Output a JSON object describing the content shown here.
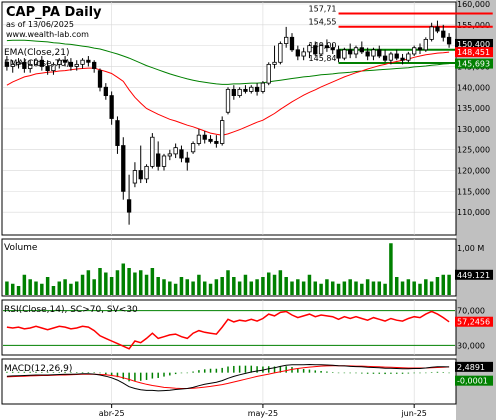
{
  "header": {
    "title": "CAP_PA Daily",
    "subtitle": "as of 13/06/2025",
    "source": "www.wealth-lab.com"
  },
  "colors": {
    "background": "#ffffff",
    "axis_panel": "#c0c0c0",
    "grid": "#d8d8d8",
    "candle": "#000000",
    "ema21": "#ff0000",
    "ema70": "#008000",
    "resistance": "#ff0000",
    "support": "#008000",
    "volume": "#008000",
    "rsi_line": "#ff0000",
    "rsi_zone": "#008000",
    "macd_line": "#000000",
    "macd_signal": "#ff0000",
    "macd_hist": "#008000",
    "last_price_box": "#000000"
  },
  "chart_data": [
    {
      "type": "candlestick",
      "legend": [
        "EMA(Close,21)",
        "EMA(Close,70)"
      ],
      "ylim": [
        105,
        160
      ],
      "yticks": [
        "110,000",
        "115,000",
        "120,000",
        "125,000",
        "130,000",
        "135,000",
        "140,000",
        "145,000",
        "150,000",
        "155,000",
        "160,000"
      ],
      "x_labels": [
        {
          "i": 18,
          "label": "abr-25"
        },
        {
          "i": 44,
          "label": "may-25"
        },
        {
          "i": 70,
          "label": "jun-25"
        }
      ],
      "axis_markers": [
        {
          "value": 150.4,
          "label": "150,400",
          "color": "#000000"
        },
        {
          "value": 148.45,
          "label": "148,451",
          "color": "#ff0000"
        },
        {
          "value": 145.69,
          "label": "145,693",
          "color": "#008000"
        }
      ],
      "levels": [
        {
          "value": 157.71,
          "label": "157,71",
          "color": "#ff0000",
          "from": 57,
          "to": 83
        },
        {
          "value": 154.55,
          "label": "154,55",
          "color": "#ff0000",
          "from": 57,
          "to": 83
        },
        {
          "value": 149.0,
          "label": "149,00",
          "color": "#008000",
          "from": 57,
          "to": 83
        },
        {
          "value": 145.84,
          "label": "145,84",
          "color": "#008000",
          "from": 57,
          "to": 83
        }
      ],
      "candles": [
        {
          "o": 146.0,
          "h": 147.5,
          "l": 144.0,
          "c": 145.0
        },
        {
          "o": 145.0,
          "h": 146.5,
          "l": 143.5,
          "c": 145.5
        },
        {
          "o": 145.5,
          "h": 147.0,
          "l": 144.5,
          "c": 146.0
        },
        {
          "o": 146.0,
          "h": 147.0,
          "l": 143.5,
          "c": 144.5
        },
        {
          "o": 144.5,
          "h": 146.5,
          "l": 143.5,
          "c": 145.5
        },
        {
          "o": 145.5,
          "h": 147.0,
          "l": 145.0,
          "c": 146.5
        },
        {
          "o": 146.5,
          "h": 147.5,
          "l": 144.0,
          "c": 145.0
        },
        {
          "o": 145.0,
          "h": 146.5,
          "l": 143.0,
          "c": 144.0
        },
        {
          "o": 144.0,
          "h": 146.0,
          "l": 143.0,
          "c": 145.5
        },
        {
          "o": 145.5,
          "h": 147.0,
          "l": 144.5,
          "c": 146.5
        },
        {
          "o": 146.5,
          "h": 147.5,
          "l": 145.0,
          "c": 146.0
        },
        {
          "o": 146.0,
          "h": 147.0,
          "l": 144.0,
          "c": 145.0
        },
        {
          "o": 145.0,
          "h": 146.5,
          "l": 144.0,
          "c": 145.5
        },
        {
          "o": 145.5,
          "h": 147.0,
          "l": 144.5,
          "c": 146.5
        },
        {
          "o": 146.5,
          "h": 147.5,
          "l": 145.0,
          "c": 146.0
        },
        {
          "o": 146.0,
          "h": 146.5,
          "l": 143.5,
          "c": 144.5
        },
        {
          "o": 144.0,
          "h": 144.5,
          "l": 139.0,
          "c": 140.0
        },
        {
          "o": 140.0,
          "h": 141.0,
          "l": 137.0,
          "c": 138.0
        },
        {
          "o": 138.0,
          "h": 139.0,
          "l": 131.0,
          "c": 132.5
        },
        {
          "o": 132.0,
          "h": 133.0,
          "l": 124.0,
          "c": 126.0
        },
        {
          "o": 126.0,
          "h": 128.0,
          "l": 113.0,
          "c": 115.0
        },
        {
          "o": 113.0,
          "h": 119.0,
          "l": 107.0,
          "c": 110.0
        },
        {
          "o": 117.0,
          "h": 122.0,
          "l": 116.0,
          "c": 120.0
        },
        {
          "o": 120.0,
          "h": 126.0,
          "l": 117.0,
          "c": 118.0
        },
        {
          "o": 118.0,
          "h": 121.5,
          "l": 117.0,
          "c": 121.0
        },
        {
          "o": 121.0,
          "h": 129.0,
          "l": 120.5,
          "c": 128.0
        },
        {
          "o": 124.0,
          "h": 127.0,
          "l": 120.0,
          "c": 121.0
        },
        {
          "o": 121.0,
          "h": 124.0,
          "l": 120.0,
          "c": 123.5
        },
        {
          "o": 123.5,
          "h": 125.0,
          "l": 122.5,
          "c": 124.0
        },
        {
          "o": 124.0,
          "h": 126.5,
          "l": 123.0,
          "c": 125.5
        },
        {
          "o": 125.0,
          "h": 126.0,
          "l": 122.0,
          "c": 123.0
        },
        {
          "o": 123.0,
          "h": 124.5,
          "l": 120.0,
          "c": 122.0
        },
        {
          "o": 124.5,
          "h": 127.0,
          "l": 124.0,
          "c": 126.5
        },
        {
          "o": 126.5,
          "h": 130.0,
          "l": 126.0,
          "c": 128.5
        },
        {
          "o": 128.5,
          "h": 129.5,
          "l": 126.5,
          "c": 127.5
        },
        {
          "o": 127.5,
          "h": 128.5,
          "l": 126.5,
          "c": 127.0
        },
        {
          "o": 127.0,
          "h": 128.5,
          "l": 125.5,
          "c": 126.5
        },
        {
          "o": 126.5,
          "h": 133.0,
          "l": 126.0,
          "c": 132.0
        },
        {
          "o": 134.0,
          "h": 140.0,
          "l": 133.5,
          "c": 139.5
        },
        {
          "o": 139.5,
          "h": 140.5,
          "l": 137.0,
          "c": 138.0
        },
        {
          "o": 138.0,
          "h": 140.0,
          "l": 137.5,
          "c": 139.5
        },
        {
          "o": 139.5,
          "h": 140.5,
          "l": 138.5,
          "c": 139.0
        },
        {
          "o": 139.0,
          "h": 140.5,
          "l": 138.5,
          "c": 140.0
        },
        {
          "o": 140.0,
          "h": 141.0,
          "l": 138.0,
          "c": 139.0
        },
        {
          "o": 139.0,
          "h": 141.5,
          "l": 138.5,
          "c": 141.0
        },
        {
          "o": 141.0,
          "h": 146.0,
          "l": 140.5,
          "c": 145.5
        },
        {
          "o": 145.5,
          "h": 150.0,
          "l": 144.5,
          "c": 146.0
        },
        {
          "o": 146.0,
          "h": 151.0,
          "l": 145.5,
          "c": 150.5
        },
        {
          "o": 150.5,
          "h": 154.5,
          "l": 149.5,
          "c": 152.0
        },
        {
          "o": 152.0,
          "h": 153.0,
          "l": 148.5,
          "c": 149.0
        },
        {
          "o": 149.0,
          "h": 150.0,
          "l": 146.5,
          "c": 147.5
        },
        {
          "o": 147.5,
          "h": 149.5,
          "l": 146.5,
          "c": 148.5
        },
        {
          "o": 148.5,
          "h": 150.5,
          "l": 147.0,
          "c": 150.0
        },
        {
          "o": 150.0,
          "h": 151.0,
          "l": 147.5,
          "c": 148.0
        },
        {
          "o": 148.0,
          "h": 150.5,
          "l": 147.5,
          "c": 150.0
        },
        {
          "o": 150.0,
          "h": 151.5,
          "l": 148.5,
          "c": 149.5
        },
        {
          "o": 149.5,
          "h": 150.5,
          "l": 148.0,
          "c": 149.0
        },
        {
          "o": 149.0,
          "h": 150.0,
          "l": 146.0,
          "c": 147.0
        },
        {
          "o": 147.0,
          "h": 149.5,
          "l": 146.5,
          "c": 149.0
        },
        {
          "o": 149.0,
          "h": 150.5,
          "l": 147.0,
          "c": 148.0
        },
        {
          "o": 148.0,
          "h": 150.0,
          "l": 147.0,
          "c": 149.5
        },
        {
          "o": 149.5,
          "h": 151.0,
          "l": 148.0,
          "c": 148.5
        },
        {
          "o": 148.5,
          "h": 149.5,
          "l": 146.5,
          "c": 147.5
        },
        {
          "o": 147.5,
          "h": 149.5,
          "l": 146.5,
          "c": 149.0
        },
        {
          "o": 149.0,
          "h": 150.0,
          "l": 147.0,
          "c": 147.5
        },
        {
          "o": 147.5,
          "h": 149.0,
          "l": 146.0,
          "c": 146.5
        },
        {
          "o": 146.5,
          "h": 148.5,
          "l": 145.5,
          "c": 148.0
        },
        {
          "o": 148.0,
          "h": 149.0,
          "l": 146.5,
          "c": 147.0
        },
        {
          "o": 147.0,
          "h": 148.0,
          "l": 145.5,
          "c": 146.5
        },
        {
          "o": 146.5,
          "h": 148.5,
          "l": 146.0,
          "c": 148.0
        },
        {
          "o": 148.0,
          "h": 150.0,
          "l": 147.5,
          "c": 149.5
        },
        {
          "o": 149.5,
          "h": 150.5,
          "l": 148.0,
          "c": 149.0
        },
        {
          "o": 149.0,
          "h": 152.0,
          "l": 148.5,
          "c": 151.5
        },
        {
          "o": 151.5,
          "h": 155.5,
          "l": 151.0,
          "c": 154.5
        },
        {
          "o": 154.5,
          "h": 156.0,
          "l": 153.0,
          "c": 153.5
        },
        {
          "o": 153.5,
          "h": 155.0,
          "l": 151.0,
          "c": 152.0
        },
        {
          "o": 152.0,
          "h": 153.0,
          "l": 149.5,
          "c": 150.4
        }
      ],
      "ema21": [
        140.5,
        141.3,
        141.9,
        142.5,
        142.8,
        143.2,
        143.4,
        143.6,
        143.7,
        143.9,
        144.0,
        144.2,
        144.4,
        144.5,
        144.6,
        144.6,
        144.2,
        143.8,
        143.3,
        142.4,
        141.4,
        139.4,
        137.6,
        136.2,
        134.9,
        134.2,
        133.5,
        132.9,
        132.3,
        131.9,
        131.4,
        130.9,
        130.5,
        130.0,
        129.5,
        129.0,
        128.7,
        128.5,
        128.8,
        129.3,
        129.8,
        130.4,
        131.0,
        131.6,
        132.1,
        132.9,
        133.7,
        134.7,
        135.6,
        136.5,
        137.3,
        138.1,
        138.8,
        139.4,
        140.1,
        140.7,
        141.3,
        141.9,
        142.5,
        143.0,
        143.5,
        143.9,
        144.4,
        144.8,
        145.2,
        145.5,
        145.9,
        146.2,
        146.5,
        146.8,
        147.2,
        147.5,
        147.8,
        148.0,
        148.2,
        148.3,
        148.45
      ],
      "ema70": [
        151.2,
        151.3,
        151.3,
        151.3,
        151.2,
        151.1,
        151.0,
        150.9,
        150.7,
        150.6,
        150.4,
        150.3,
        150.1,
        149.9,
        149.7,
        149.4,
        149.2,
        148.8,
        148.4,
        148.0,
        147.5,
        147.0,
        146.4,
        145.8,
        145.2,
        144.7,
        144.2,
        143.7,
        143.2,
        142.8,
        142.4,
        142.0,
        141.7,
        141.4,
        141.2,
        141.0,
        140.8,
        140.7,
        140.7,
        140.8,
        140.8,
        140.9,
        141.0,
        141.0,
        141.1,
        141.3,
        141.5,
        141.7,
        141.9,
        142.1,
        142.3,
        142.5,
        142.6,
        142.8,
        143.0,
        143.1,
        143.2,
        143.4,
        143.5,
        143.6,
        143.8,
        143.9,
        144.0,
        144.1,
        144.2,
        144.3,
        144.4,
        144.5,
        144.6,
        144.7,
        144.9,
        145.0,
        145.1,
        145.3,
        145.4,
        145.6,
        145.69
      ]
    },
    {
      "type": "bar",
      "title": "Volume",
      "yticks": [
        "1,00 M"
      ],
      "ylim": [
        0,
        1.2
      ],
      "marker": {
        "value": 0.449121,
        "label": "449.121"
      },
      "values": [
        0.3,
        0.25,
        0.2,
        0.45,
        0.35,
        0.3,
        0.25,
        0.4,
        0.2,
        0.3,
        0.35,
        0.25,
        0.3,
        0.45,
        0.55,
        0.35,
        0.6,
        0.5,
        0.4,
        0.55,
        0.7,
        0.6,
        0.5,
        0.55,
        0.45,
        0.6,
        0.4,
        0.35,
        0.3,
        0.25,
        0.4,
        0.35,
        0.3,
        0.45,
        0.3,
        0.25,
        0.35,
        0.4,
        0.55,
        0.4,
        0.3,
        0.45,
        0.3,
        0.35,
        0.4,
        0.5,
        0.45,
        0.55,
        0.4,
        0.3,
        0.35,
        0.3,
        0.45,
        0.3,
        0.25,
        0.35,
        0.3,
        0.25,
        0.3,
        0.35,
        0.3,
        0.25,
        0.35,
        0.3,
        0.3,
        0.25,
        1.15,
        0.4,
        0.3,
        0.35,
        0.3,
        0.25,
        0.35,
        0.3,
        0.4,
        0.45,
        0.45
      ]
    },
    {
      "type": "line",
      "title": "RSI(Close,14), SC>70, SV<30",
      "ylim": [
        20,
        80
      ],
      "yticks": [
        "70,000",
        "30,000"
      ],
      "zones": [
        70,
        30
      ],
      "marker": {
        "value": 57.2456,
        "label": "57,2456"
      },
      "values": [
        51,
        50,
        51,
        49,
        50,
        52,
        50,
        48,
        50,
        52,
        51,
        49,
        50,
        52,
        51,
        47,
        41,
        38,
        35,
        32,
        29,
        26,
        35,
        33,
        38,
        44,
        38,
        40,
        42,
        43,
        40,
        38,
        44,
        47,
        45,
        44,
        43,
        51,
        60,
        57,
        59,
        58,
        60,
        58,
        61,
        66,
        64,
        68,
        69,
        65,
        62,
        64,
        66,
        63,
        65,
        64,
        63,
        60,
        63,
        61,
        63,
        61,
        59,
        62,
        60,
        58,
        61,
        59,
        58,
        61,
        63,
        62,
        66,
        69,
        66,
        62,
        57.2
      ]
    },
    {
      "type": "line",
      "title": "MACD(12,26,9)",
      "marker_top": {
        "value": 2.4891,
        "label": "2,4891"
      },
      "marker_bottom": {
        "value": -0.0001,
        "label": "-0,0001"
      },
      "ylim": [
        -13,
        5
      ],
      "macd": [
        -1.5,
        -1.4,
        -1.3,
        -1.2,
        -1.1,
        -1.0,
        -1.0,
        -1.0,
        -0.9,
        -0.8,
        -0.7,
        -0.7,
        -0.6,
        -0.5,
        -0.5,
        -0.6,
        -1.0,
        -1.5,
        -2.2,
        -3.2,
        -4.5,
        -6.0,
        -6.8,
        -7.3,
        -7.6,
        -7.6,
        -7.8,
        -7.7,
        -7.5,
        -7.2,
        -7.0,
        -6.8,
        -6.3,
        -5.6,
        -5.0,
        -4.5,
        -4.1,
        -3.4,
        -2.4,
        -1.6,
        -0.9,
        -0.3,
        0.3,
        0.7,
        1.1,
        1.7,
        2.1,
        2.7,
        3.2,
        3.4,
        3.4,
        3.4,
        3.5,
        3.4,
        3.4,
        3.3,
        3.2,
        3.0,
        2.9,
        2.7,
        2.6,
        2.5,
        2.3,
        2.2,
        2.1,
        1.9,
        1.9,
        1.8,
        1.7,
        1.7,
        1.8,
        1.8,
        2.0,
        2.3,
        2.5,
        2.5,
        2.49
      ],
      "signal": [
        -1.8,
        -1.7,
        -1.6,
        -1.5,
        -1.4,
        -1.3,
        -1.2,
        -1.2,
        -1.1,
        -1.0,
        -1.0,
        -0.9,
        -0.8,
        -0.7,
        -0.7,
        -0.7,
        -0.8,
        -0.9,
        -1.2,
        -1.6,
        -2.2,
        -2.9,
        -3.7,
        -4.4,
        -5.0,
        -5.5,
        -5.9,
        -6.3,
        -6.5,
        -6.7,
        -6.8,
        -6.8,
        -6.7,
        -6.5,
        -6.2,
        -5.9,
        -5.5,
        -5.1,
        -4.6,
        -4.0,
        -3.4,
        -2.8,
        -2.2,
        -1.6,
        -1.1,
        -0.6,
        -0.1,
        0.4,
        0.9,
        1.4,
        1.8,
        2.1,
        2.4,
        2.6,
        2.8,
        2.9,
        3.0,
        3.0,
        3.0,
        2.9,
        2.8,
        2.8,
        2.7,
        2.6,
        2.5,
        2.4,
        2.3,
        2.2,
        2.1,
        2.0,
        2.0,
        2.0,
        2.0,
        2.1,
        2.2,
        2.3,
        2.49
      ]
    }
  ]
}
